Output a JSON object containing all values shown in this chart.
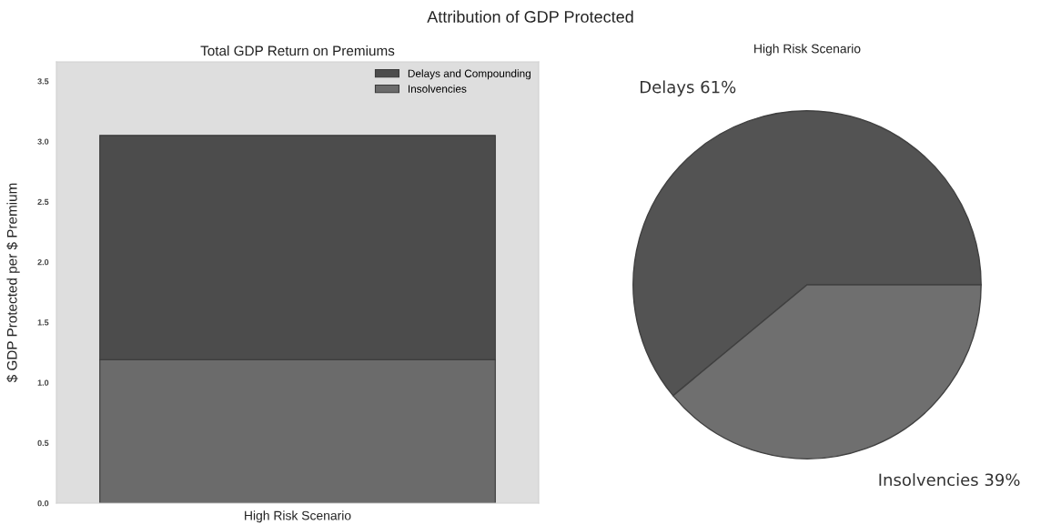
{
  "chart_data": [
    {
      "type": "bar",
      "title": "Total GDP Return on Premiums",
      "ylabel": "$ GDP Protected per $ Premium",
      "annotations": [
        "Attribution of GDP Protected"
      ],
      "categories": [
        "High Risk Scenario"
      ],
      "stacked": true,
      "series": [
        {
          "name": "Insolvencies",
          "color": "#6b6b6b",
          "values": [
            1.19
          ]
        },
        {
          "name": "Delays and Compounding",
          "color": "#4c4c4c",
          "values": [
            1.86
          ]
        }
      ],
      "ylim": [
        0,
        3.66
      ],
      "yticks": [
        {
          "value": 0,
          "label": "0.0"
        },
        0.5,
        {
          "value": 1,
          "label": "1.0"
        },
        1.5,
        {
          "value": 2,
          "label": "2.0"
        },
        2.5,
        {
          "value": 3,
          "label": "3.0"
        },
        3.5
      ],
      "legend": "top right"
    },
    {
      "type": "pie",
      "title": "High Risk Scenario",
      "categories": [
        "Delays",
        "Insolvencies"
      ],
      "values": [
        61,
        39
      ],
      "colors": [
        "#535353",
        "#6f6f6f"
      ],
      "value_labels": [
        "61%",
        "39%"
      ]
    }
  ]
}
